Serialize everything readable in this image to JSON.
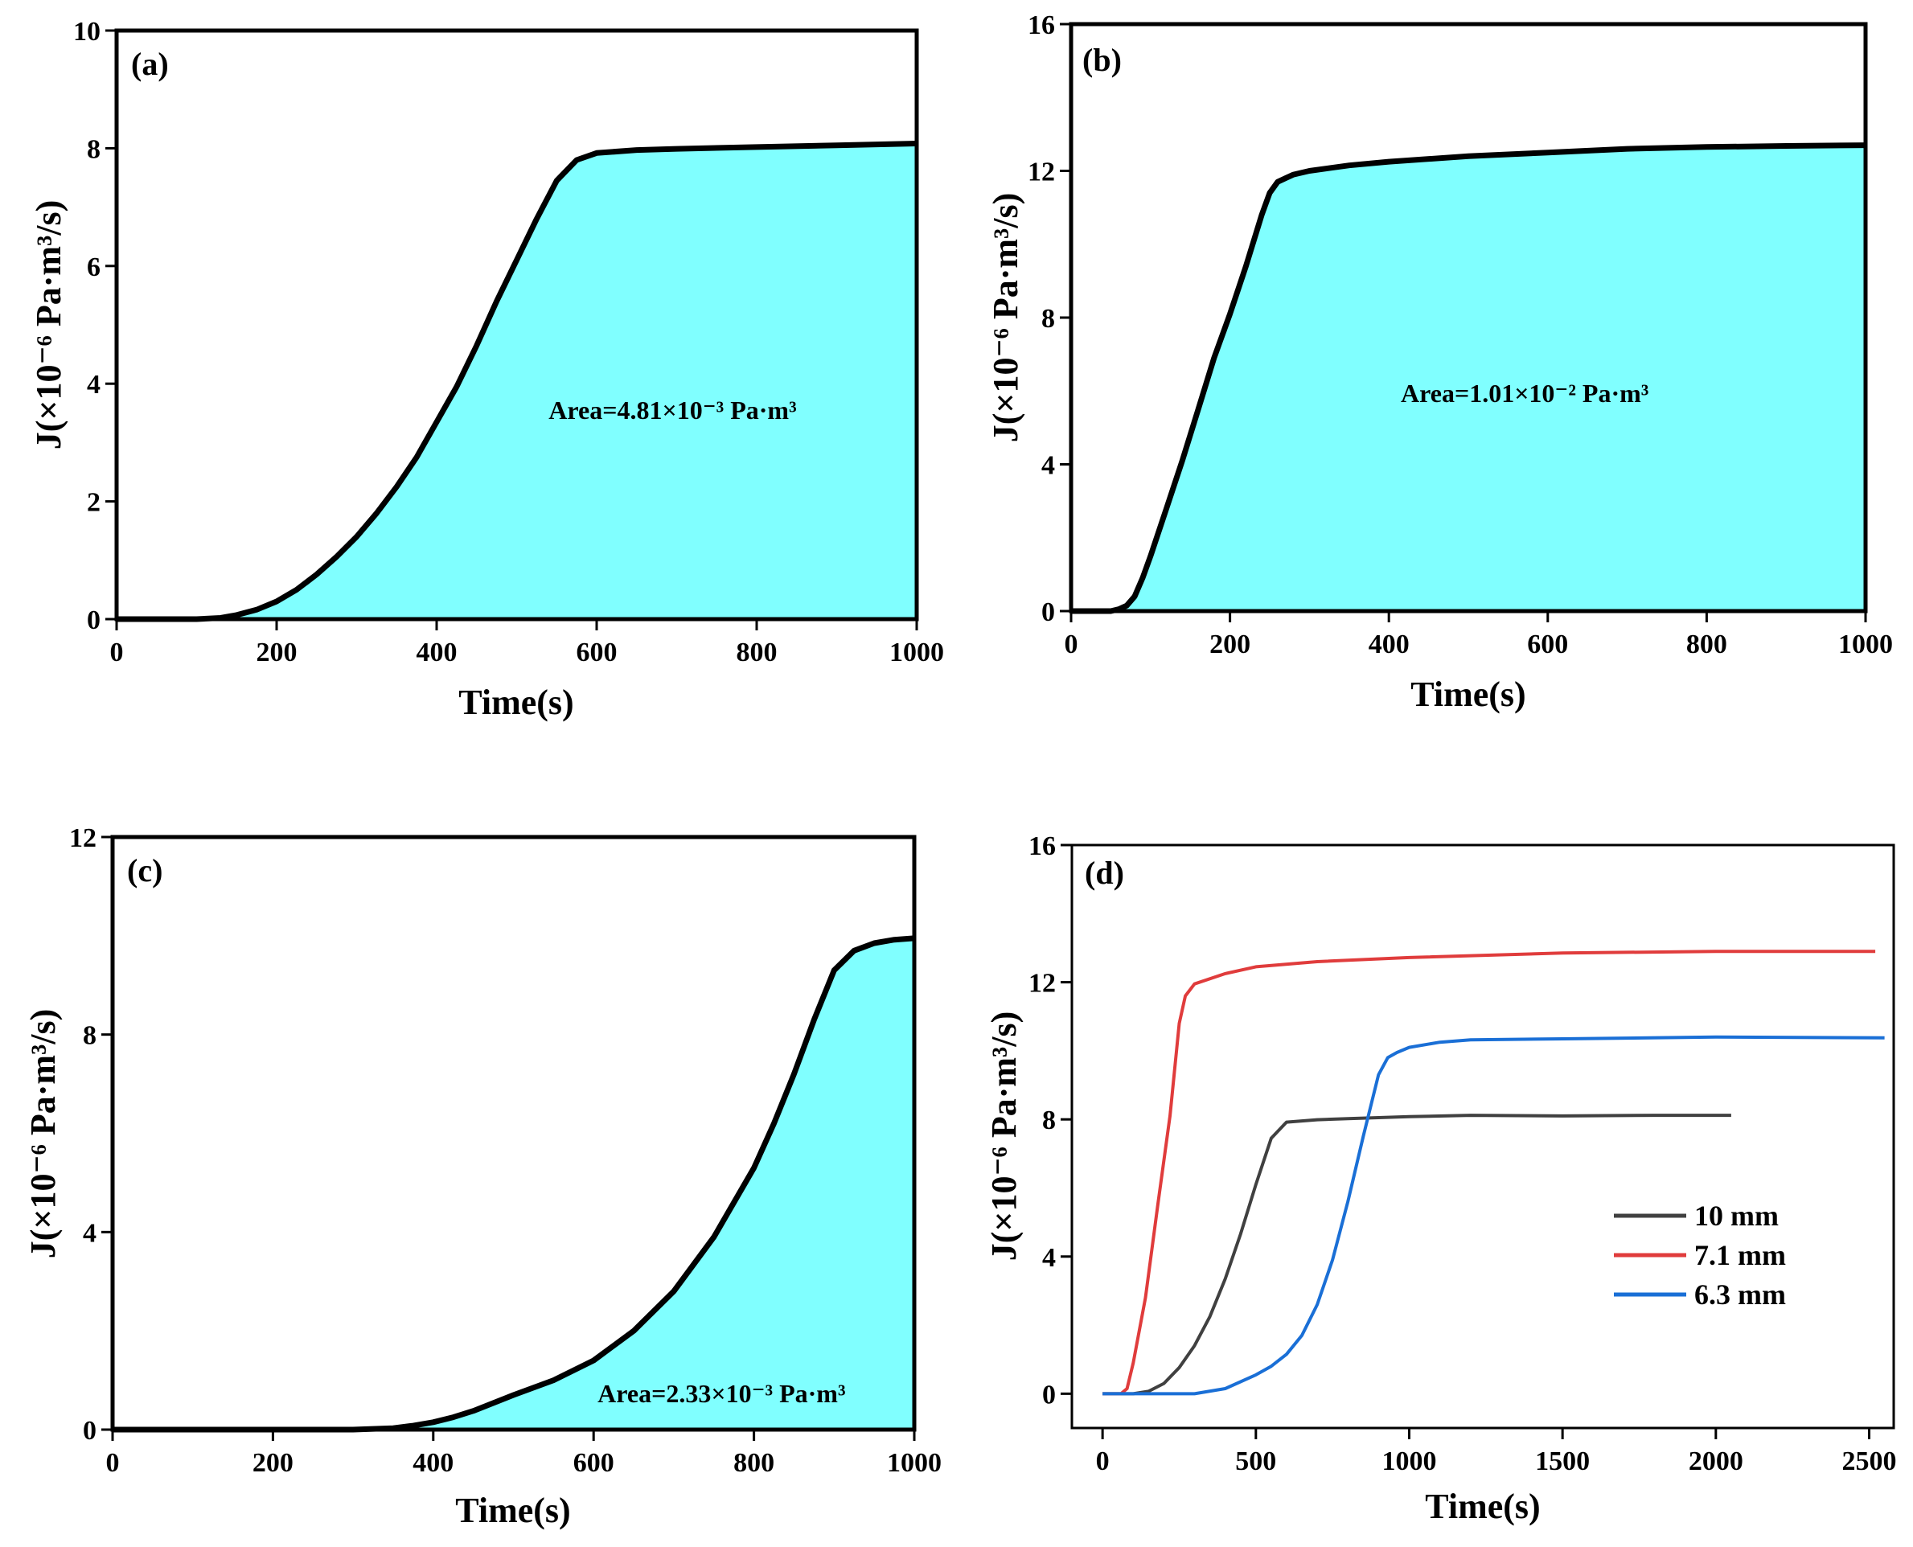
{
  "chart_data": [
    {
      "id": "a",
      "type": "area",
      "panel_label": "(a)",
      "xlabel": "Time(s)",
      "ylabel": "J(×10⁻⁶ Pa·m³/s)",
      "xlim": [
        0,
        1000
      ],
      "ylim": [
        0,
        10
      ],
      "xticks": [
        0,
        200,
        400,
        600,
        800,
        1000
      ],
      "yticks": [
        0,
        2,
        4,
        6,
        8,
        10
      ],
      "fill_color": "#80ffff",
      "line_color": "#000000",
      "annotation": "Area=4.81×10⁻³ Pa·m³",
      "annotation_pos": {
        "x": 540,
        "y": 3.4
      },
      "series": [
        {
          "name": "J",
          "x": [
            0,
            100,
            130,
            150,
            175,
            200,
            225,
            250,
            275,
            300,
            325,
            350,
            375,
            400,
            425,
            450,
            475,
            500,
            525,
            550,
            575,
            600,
            650,
            700,
            800,
            900,
            1000
          ],
          "y": [
            0,
            0,
            0.02,
            0.07,
            0.16,
            0.3,
            0.5,
            0.76,
            1.06,
            1.4,
            1.8,
            2.25,
            2.75,
            3.35,
            3.95,
            4.65,
            5.4,
            6.1,
            6.8,
            7.45,
            7.8,
            7.92,
            7.97,
            7.99,
            8.02,
            8.05,
            8.08
          ]
        }
      ]
    },
    {
      "id": "b",
      "type": "area",
      "panel_label": "(b)",
      "xlabel": "Time(s)",
      "ylabel": "J(×10⁻⁶ Pa·m³/s)",
      "xlim": [
        0,
        1000
      ],
      "ylim": [
        0,
        16
      ],
      "xticks": [
        0,
        200,
        400,
        600,
        800,
        1000
      ],
      "yticks": [
        0,
        4,
        8,
        12,
        16
      ],
      "fill_color": "#80ffff",
      "line_color": "#000000",
      "annotation": "Area=1.01×10⁻² Pa·m³",
      "annotation_pos": {
        "x": 415,
        "y": 5.7
      },
      "series": [
        {
          "name": "J",
          "x": [
            0,
            50,
            60,
            70,
            80,
            90,
            100,
            120,
            140,
            160,
            180,
            200,
            220,
            240,
            250,
            260,
            270,
            280,
            300,
            350,
            400,
            500,
            600,
            700,
            800,
            900,
            1000
          ],
          "y": [
            0,
            0,
            0.05,
            0.15,
            0.4,
            0.9,
            1.5,
            2.8,
            4.1,
            5.5,
            6.9,
            8.1,
            9.4,
            10.8,
            11.4,
            11.7,
            11.8,
            11.9,
            12.0,
            12.15,
            12.25,
            12.4,
            12.5,
            12.6,
            12.65,
            12.68,
            12.7
          ]
        }
      ]
    },
    {
      "id": "c",
      "type": "area",
      "panel_label": "(c)",
      "xlabel": "Time(s)",
      "ylabel": "J(×10⁻⁶ Pa·m³/s)",
      "xlim": [
        0,
        1000
      ],
      "ylim": [
        0,
        12
      ],
      "xticks": [
        0,
        200,
        400,
        600,
        800,
        1000
      ],
      "yticks": [
        0,
        4,
        8,
        12
      ],
      "fill_color": "#80ffff",
      "line_color": "#000000",
      "annotation": "Area=2.33×10⁻³ Pa·m³",
      "annotation_pos": {
        "x": 605,
        "y": 0.55
      },
      "series": [
        {
          "name": "J",
          "x": [
            0,
            300,
            350,
            375,
            400,
            425,
            450,
            500,
            550,
            600,
            650,
            700,
            750,
            800,
            825,
            850,
            875,
            900,
            925,
            950,
            975,
            1000
          ],
          "y": [
            0,
            0,
            0.03,
            0.08,
            0.15,
            0.25,
            0.38,
            0.7,
            1.0,
            1.4,
            2.0,
            2.8,
            3.9,
            5.3,
            6.2,
            7.2,
            8.3,
            9.3,
            9.7,
            9.85,
            9.92,
            9.95
          ]
        }
      ]
    },
    {
      "id": "d",
      "type": "line",
      "panel_label": "(d)",
      "xlabel": "Time(s)",
      "ylabel": "J(×10⁻⁶ Pa·m³/s)",
      "xlim": [
        -100,
        2580
      ],
      "ylim": [
        -1,
        16
      ],
      "xticks": [
        0,
        500,
        1000,
        1500,
        2000,
        2500
      ],
      "yticks": [
        0,
        4,
        8,
        12,
        16
      ],
      "legend_position": "center-right",
      "series": [
        {
          "name": "10 mm",
          "color": "#404040",
          "x": [
            0,
            100,
            150,
            200,
            250,
            300,
            350,
            400,
            450,
            500,
            550,
            600,
            700,
            800,
            1000,
            1200,
            1500,
            1800,
            2050
          ],
          "y": [
            0,
            0,
            0.07,
            0.3,
            0.76,
            1.4,
            2.25,
            3.35,
            4.65,
            6.1,
            7.45,
            7.92,
            7.99,
            8.02,
            8.08,
            8.12,
            8.1,
            8.12,
            8.12
          ]
        },
        {
          "name": "7.1 mm",
          "color": "#e03c3c",
          "x": [
            0,
            60,
            80,
            100,
            140,
            180,
            220,
            250,
            270,
            300,
            400,
            500,
            700,
            1000,
            1500,
            2000,
            2520
          ],
          "y": [
            0,
            0,
            0.15,
            0.9,
            2.8,
            5.5,
            8.1,
            10.8,
            11.6,
            11.95,
            12.25,
            12.45,
            12.6,
            12.72,
            12.85,
            12.9,
            12.9
          ]
        },
        {
          "name": "6.3 mm",
          "color": "#1a6fd6",
          "x": [
            0,
            300,
            400,
            500,
            550,
            600,
            650,
            700,
            750,
            800,
            850,
            900,
            930,
            960,
            1000,
            1100,
            1200,
            1500,
            2000,
            2550
          ],
          "y": [
            0,
            0,
            0.15,
            0.55,
            0.8,
            1.15,
            1.7,
            2.6,
            3.9,
            5.6,
            7.5,
            9.3,
            9.8,
            9.95,
            10.1,
            10.25,
            10.32,
            10.35,
            10.4,
            10.38
          ]
        }
      ]
    }
  ]
}
